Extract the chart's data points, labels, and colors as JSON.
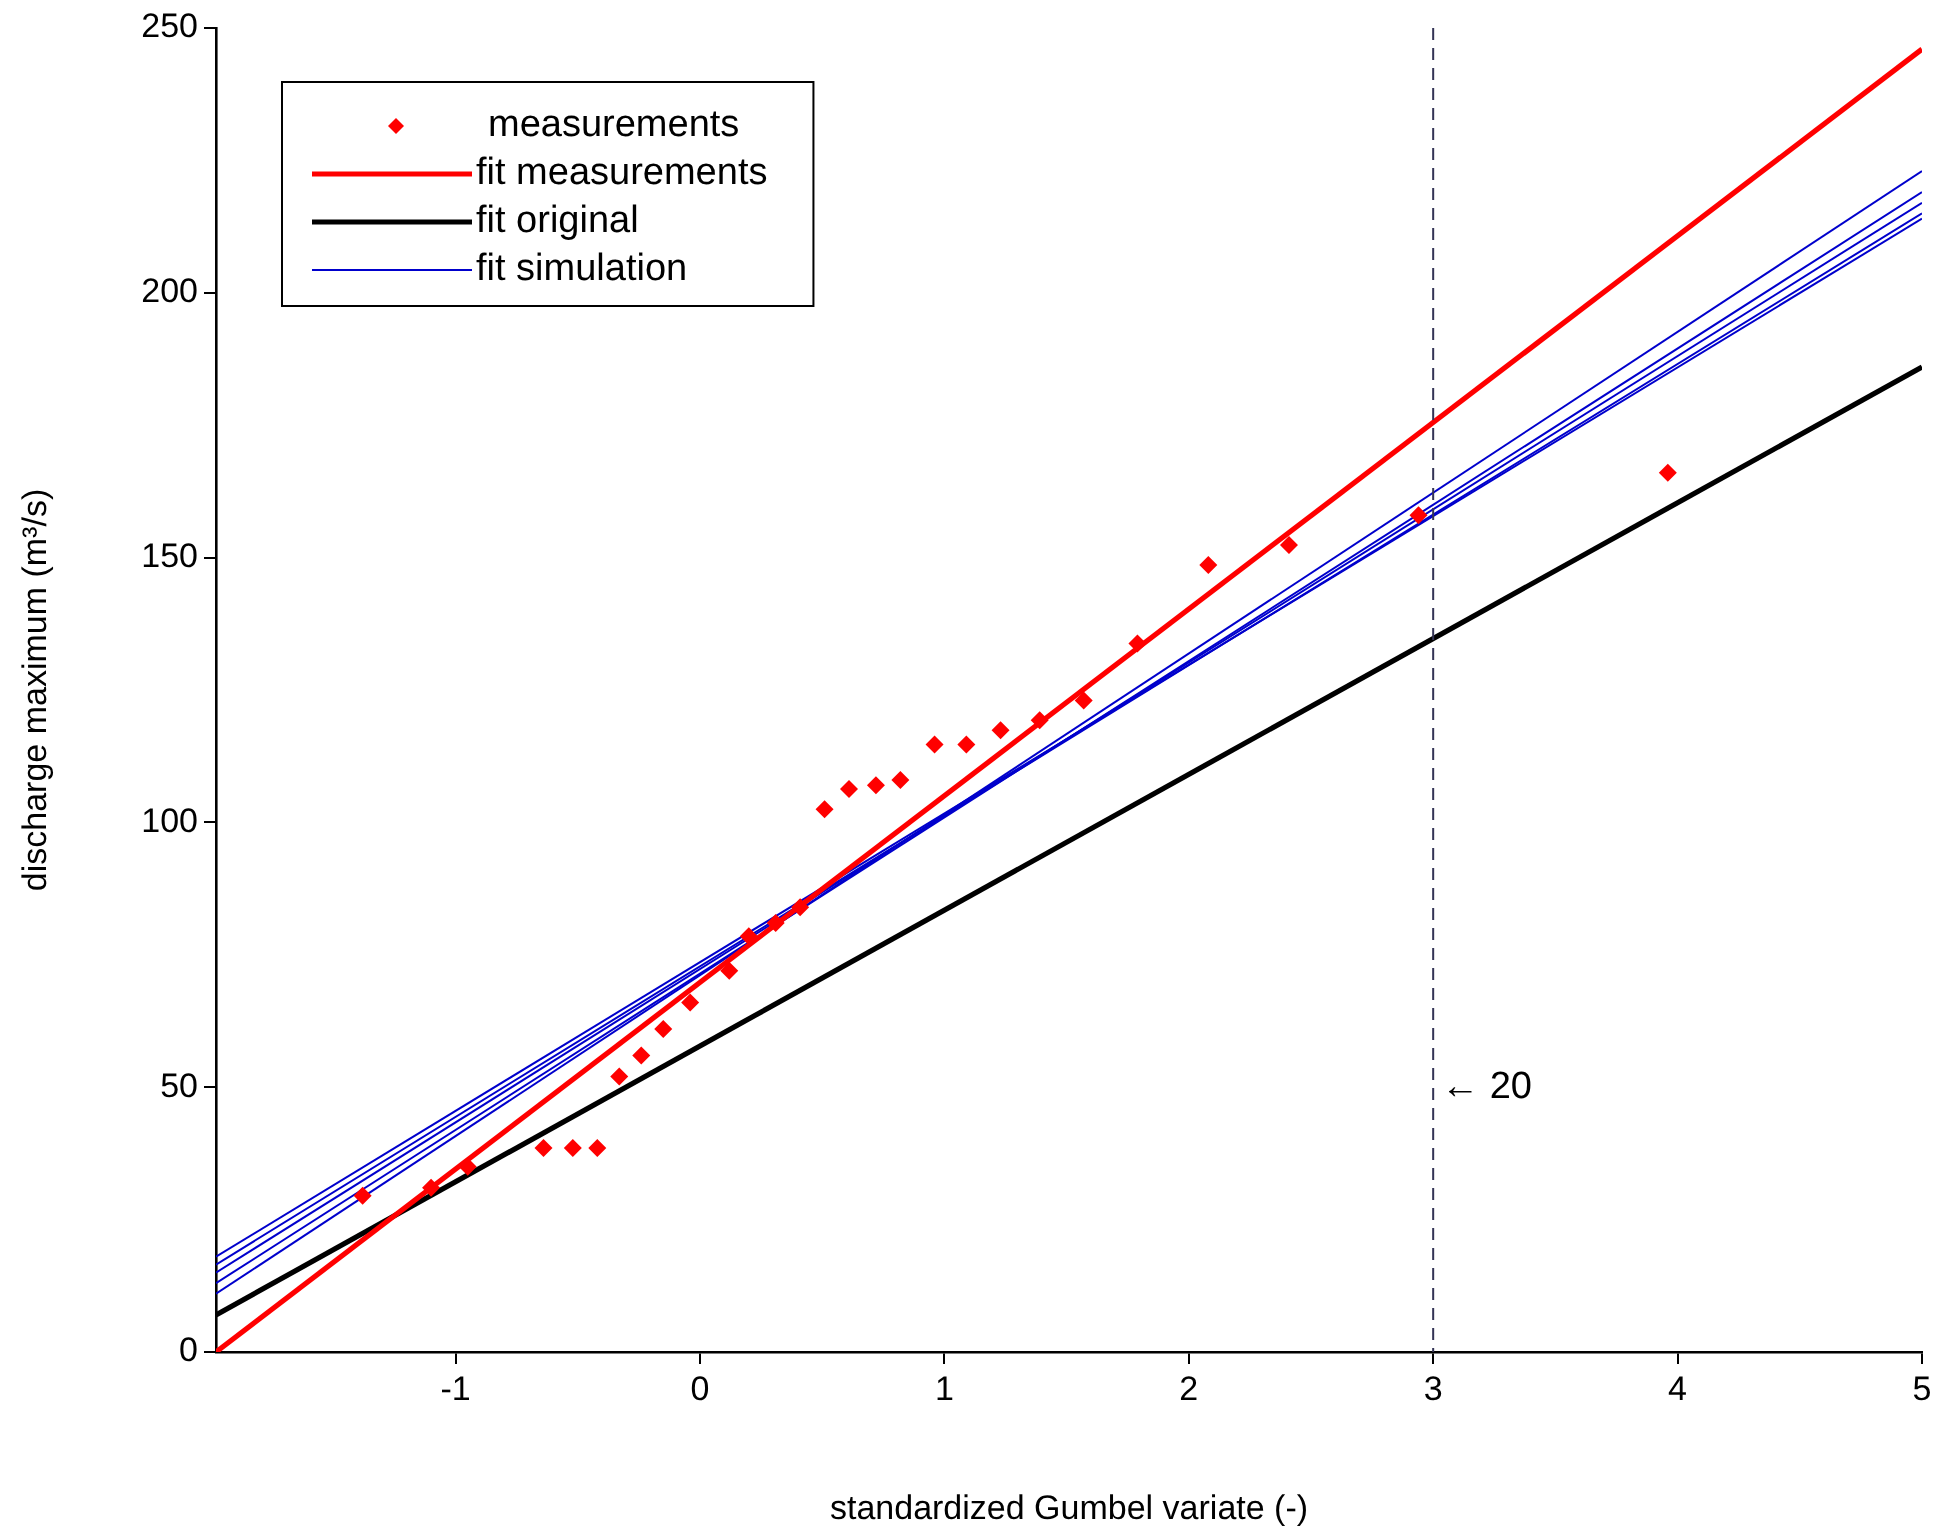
{
  "chart_data": {
    "type": "scatter",
    "xlabel": "standardized Gumbel variate (-)",
    "ylabel": "discharge maximum (m³/s)",
    "xlim": [
      -1.98,
      5
    ],
    "xticks": [
      -1,
      0,
      1,
      2,
      3,
      4,
      5
    ],
    "ylim": [
      0,
      250
    ],
    "yticks": [
      0,
      50,
      100,
      150,
      200,
      250
    ],
    "grid": false,
    "legend": "top left",
    "series": [
      {
        "name": "measurements",
        "marker": "diamond",
        "color": "#ff0000",
        "x": [
          -1.38,
          -1.1,
          -0.95,
          -0.64,
          -0.52,
          -0.42,
          -0.33,
          -0.24,
          -0.15,
          -0.04,
          0.12,
          0.2,
          0.31,
          0.41,
          0.51,
          0.61,
          0.72,
          0.82,
          0.96,
          1.09,
          1.23,
          1.39,
          1.57,
          1.79,
          2.08,
          2.41,
          2.94,
          3.96
        ],
        "values": [
          29.5,
          31,
          35,
          38.5,
          38.5,
          38.5,
          52,
          56,
          61,
          66,
          72,
          78.5,
          81,
          84,
          102.5,
          106.3,
          107,
          108,
          114.7,
          114.7,
          117.4,
          119.3,
          123,
          133.8,
          148.6,
          152.4,
          158,
          166
        ]
      },
      {
        "name": "fit measurements",
        "type": "line",
        "marker": "none",
        "color": "#ff0000",
        "x": [
          -1.98,
          5
        ],
        "values": [
          0,
          246
        ]
      },
      {
        "name": "fit original",
        "type": "line",
        "marker": "none",
        "color": "#000000",
        "x": [
          -1.98,
          5
        ],
        "values": [
          7,
          186
        ]
      },
      {
        "name": "fit simulation",
        "type": "line",
        "marker": "none",
        "color": "#0000cc",
        "x": [
          -1.98,
          5
        ],
        "values": [
          11,
          223
        ]
      },
      {
        "type": "line",
        "marker": "none",
        "color": "#0000cc",
        "x": [
          -1.98,
          5
        ],
        "values": [
          13,
          219
        ]
      },
      {
        "type": "line",
        "marker": "none",
        "color": "#0000cc",
        "x": [
          -1.98,
          5
        ],
        "values": [
          15,
          217
        ]
      },
      {
        "type": "line",
        "marker": "none",
        "color": "#0000cc",
        "x": [
          -1.98,
          5
        ],
        "values": [
          16.5,
          215
        ]
      },
      {
        "type": "line",
        "marker": "none",
        "color": "#0000cc",
        "x": [
          -1.98,
          5
        ],
        "values": [
          18,
          214
        ]
      }
    ],
    "ref_lines": [
      {
        "axis": "x",
        "value": 3,
        "label": "← 20",
        "color": "#333355",
        "line_style": "dashed"
      }
    ]
  }
}
